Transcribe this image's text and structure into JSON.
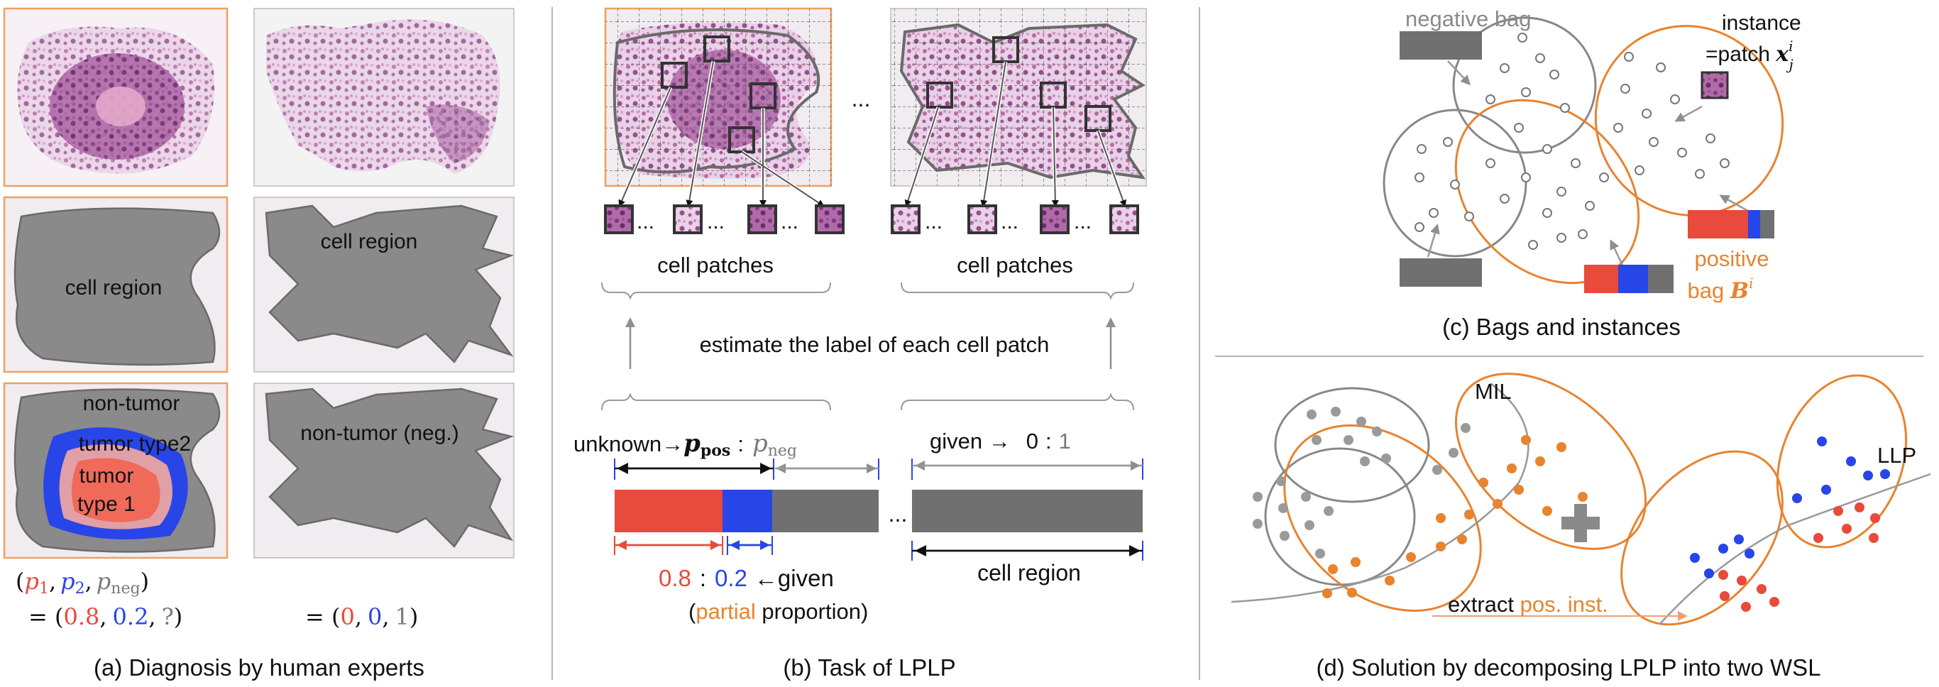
{
  "panel_a": {
    "label_cell_region": "cell region",
    "label_cell_region_2": "cell region",
    "label_non_tumor": "non-tumor",
    "label_tumor_type2": "tumor type2",
    "label_tumor": "tumor",
    "label_type1": "type 1",
    "label_non_tumor_neg": "non-tumor (neg.)",
    "prop_open": "(",
    "p1": "p",
    "p1_sub": "1",
    "p2": "p",
    "p2_sub": "2",
    "pneg": "p",
    "pneg_sub": "neg",
    "prop_close": ")",
    "comma": ",",
    "eq_left_prefix": "= (",
    "eq_left_v1": "0.8",
    "eq_left_v2": "0.2",
    "eq_left_v3": "?",
    "eq_right_prefix": "= (",
    "eq_right_v1": "0",
    "eq_right_v2": "0",
    "eq_right_v3": "1",
    "caption": "(a) Diagnosis by human experts"
  },
  "panel_b": {
    "ellipsis": "...",
    "cell_patches_1": "cell patches",
    "cell_patches_2": "cell patches",
    "estimate": "estimate the label of each cell patch",
    "unknown": "unknown→",
    "ppos_base": "p",
    "ppos_sub": "pos",
    "colon": ":",
    "pneg_base": "p",
    "pneg_sub": "neg",
    "given_arrow": "given →",
    "zero": "0",
    "one": "1",
    "v08": "0.8",
    "v02": "0.2",
    "given": "←given",
    "partial_open": "(",
    "partial": "partial",
    "proportion": " proportion)",
    "cell_region": "cell region",
    "caption": "(b) Task of LPLP"
  },
  "panel_c": {
    "negative_bag": "negative bag",
    "instance": "instance",
    "patch": "=patch ",
    "x": "x",
    "x_sup": "i",
    "x_sub": "j",
    "positive": "positive",
    "bag": "bag ",
    "B": "B",
    "B_sup": "i",
    "caption": "(c) Bags and instances"
  },
  "panel_d": {
    "mil": "MIL",
    "llp": "LLP",
    "extract": "extract ",
    "pos_inst": "pos. inst.",
    "caption": "(d) Solution by decomposing LPLP into two WSL"
  },
  "colors": {
    "orange": "#e8832e",
    "red": "#e84a3b",
    "blue": "#2845e8",
    "gray": "#7a7a7a",
    "dark_gray": "#444444",
    "region_gray": "#8a8a8a"
  }
}
